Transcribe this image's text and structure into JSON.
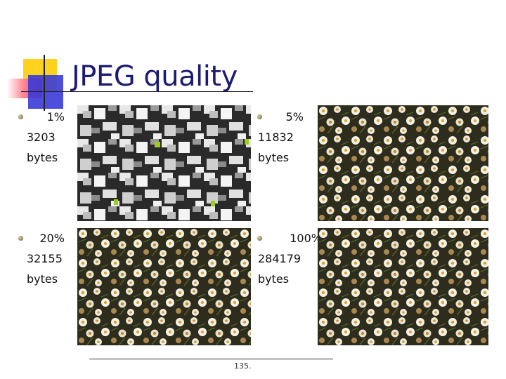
{
  "title": "JPEG quality",
  "items": [
    {
      "quality": "1%",
      "size": "3203",
      "unit": "bytes"
    },
    {
      "quality": "5%",
      "size": "11832",
      "unit": "bytes"
    },
    {
      "quality": "20%",
      "size": "32155",
      "unit": "bytes"
    },
    {
      "quality": "100%",
      "size": "284179",
      "unit": "bytes"
    }
  ],
  "page_number": "135."
}
